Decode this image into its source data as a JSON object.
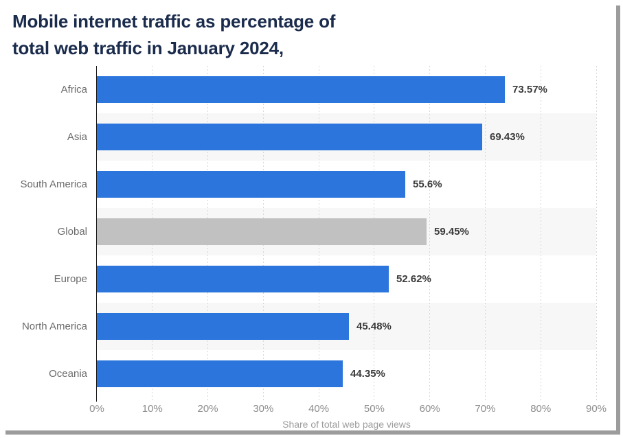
{
  "title": {
    "line1": "Mobile internet traffic as percentage of",
    "line2": "total web traffic in January 2024,"
  },
  "chart_data": {
    "type": "bar",
    "orientation": "horizontal",
    "title": "Mobile internet traffic as percentage of total web traffic in January 2024,",
    "categories": [
      "Africa",
      "Asia",
      "South America",
      "Global",
      "Europe",
      "North America",
      "Oceania"
    ],
    "values": [
      73.57,
      69.43,
      55.6,
      59.45,
      52.62,
      45.48,
      44.35
    ],
    "value_labels": [
      "73.57%",
      "69.43%",
      "55.6%",
      "59.45%",
      "52.62%",
      "45.48%",
      "44.35%"
    ],
    "highlight_category": "Global",
    "highlight_index": 3,
    "xlabel": "Share of total web page views",
    "ylabel": "",
    "xlim": [
      0,
      90
    ],
    "x_ticks": [
      "0%",
      "10%",
      "20%",
      "30%",
      "40%",
      "50%",
      "60%",
      "70%",
      "80%",
      "90%"
    ],
    "grid": "vertical-dotted",
    "legend": "none",
    "row_striping": "alternate",
    "colors": {
      "bar": "#2c75dd",
      "highlight_bar": "#c1c1c1",
      "row_stripe": "#f7f7f7",
      "gridline": "#d6d6d6",
      "axis_line": "#1c1c1c",
      "title_text": "#1a2b4c",
      "category_text": "#6b6b6b",
      "value_text": "#3a3a3a",
      "tick_text": "#8c8c8c",
      "xlabel_text": "#9c9c9c",
      "frame_shadow": "#9c9c9c"
    }
  }
}
